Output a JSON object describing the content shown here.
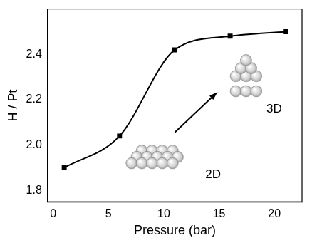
{
  "chart_data": {
    "type": "line",
    "x_label": "Pressure (bar)",
    "y_label": "H / Pt",
    "x": [
      1,
      6,
      11,
      16,
      21
    ],
    "series": [
      {
        "name": "H / Pt",
        "color": "#000000",
        "marker": "square",
        "line_style": "solid",
        "values": [
          1.9,
          2.04,
          2.42,
          2.48,
          2.5
        ]
      }
    ],
    "xlim": [
      -0.5,
      22.5
    ],
    "xticks": [
      0,
      5,
      10,
      15,
      20
    ],
    "ylim": [
      1.75,
      2.6
    ],
    "yticks": [
      1.8,
      {
        "value": 2,
        "label": "2.0"
      },
      2.2,
      2.4
    ],
    "grid": false,
    "annotations": [
      "2D",
      "3D"
    ]
  }
}
